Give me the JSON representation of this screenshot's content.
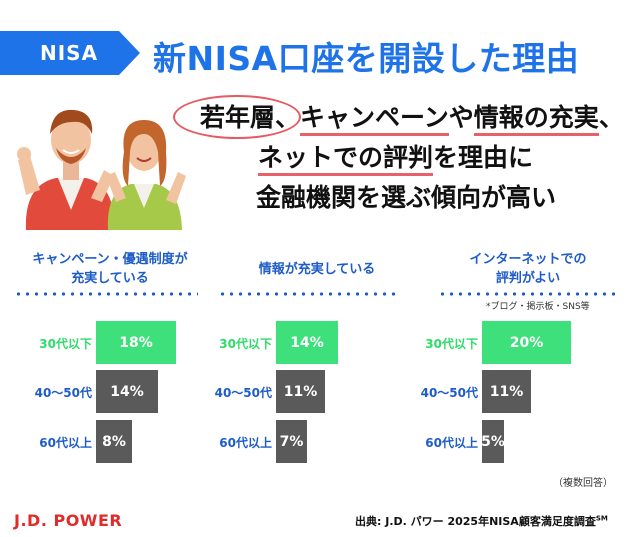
{
  "header": {
    "badge": "NISA",
    "title": "新NISA口座を開設した理由"
  },
  "headline": {
    "line1_a": "若年層、",
    "line1_b": "キャンペーン",
    "line1_c": "や",
    "line1_d": "情報の充実",
    "line1_e": "、",
    "line2_a": "ネットでの評判",
    "line2_b": "を理由に",
    "line3": "金融機関を選ぶ傾向が高い"
  },
  "colors": {
    "accent_blue": "#1e73e8",
    "highlight_green": "#3de07a",
    "neutral_gray": "#5a5a5a",
    "underline_red": "#e8606a"
  },
  "chart_data": [
    {
      "type": "bar",
      "title": "キャンペーン・優遇制度が\n充実している",
      "title_line1": "キャンペーン・優遇制度が",
      "title_line2": "充実している",
      "categories": [
        "30代以下",
        "40〜50代",
        "60代以上"
      ],
      "values": [
        18,
        14,
        8
      ],
      "value_labels": [
        "18%",
        "14%",
        "8%"
      ],
      "highlight_index": 0
    },
    {
      "type": "bar",
      "title": "情報が充実している",
      "title_line1": "情報が充実している",
      "title_line2": "",
      "categories": [
        "30代以下",
        "40〜50代",
        "60代以上"
      ],
      "values": [
        14,
        11,
        7
      ],
      "value_labels": [
        "14%",
        "11%",
        "7%"
      ],
      "highlight_index": 0
    },
    {
      "type": "bar",
      "title": "インターネットでの\n評判がよい",
      "title_line1": "インターネットでの",
      "title_line2": "評判がよい",
      "categories": [
        "30代以下",
        "40〜50代",
        "60代以上"
      ],
      "values": [
        20,
        11,
        5
      ],
      "value_labels": [
        "20%",
        "11%",
        "5%"
      ],
      "highlight_index": 0,
      "note": "*ブログ・掲示板・SNS等"
    }
  ],
  "footer": {
    "multiple_answers": "（複数回答）",
    "logo": "J.D. POWER",
    "source": "出典: J.D. パワー 2025年NISA顧客満足度調査",
    "source_mark": "SM"
  }
}
